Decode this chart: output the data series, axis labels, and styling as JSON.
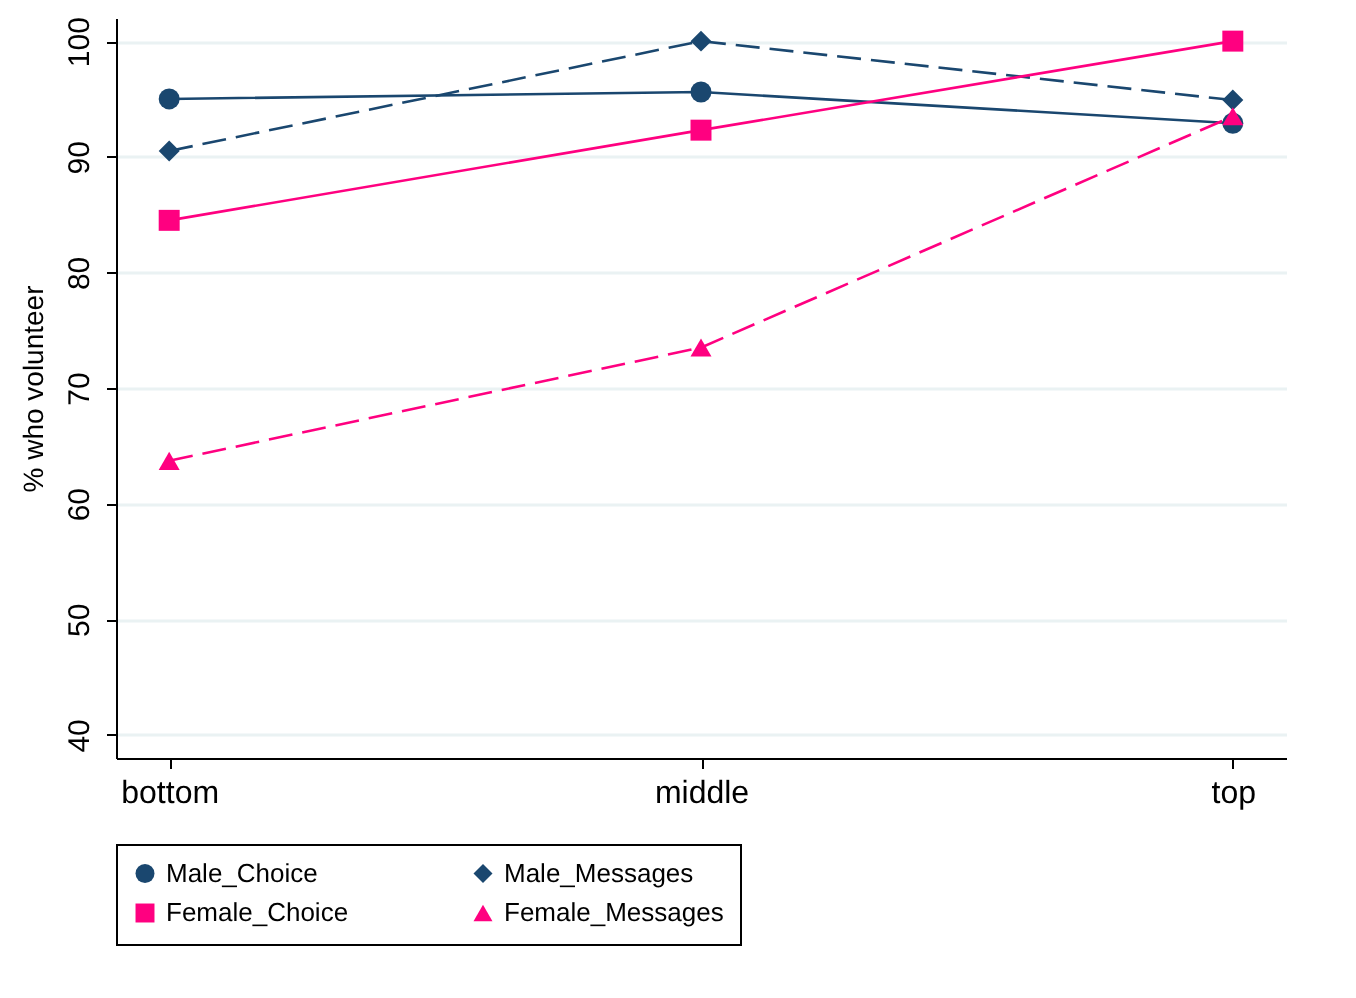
{
  "chart_data": {
    "type": "line",
    "ylabel": "% who volunteer",
    "categories": [
      "bottom",
      "middle",
      "top"
    ],
    "series": [
      {
        "name": "Male_Choice",
        "color": "#1a476f",
        "marker": "circle",
        "line_style": "solid",
        "values": [
          95,
          95.6,
          92.9
        ]
      },
      {
        "name": "Male_Messages",
        "color": "#1a476f",
        "marker": "diamond",
        "line_style": "dashed",
        "values": [
          90.5,
          100,
          94.9
        ]
      },
      {
        "name": "Female_Choice",
        "color": "#ff0080",
        "marker": "square",
        "line_style": "solid",
        "values": [
          84.5,
          92.3,
          100
        ]
      },
      {
        "name": "Female_Messages",
        "color": "#ff0080",
        "marker": "triangle",
        "line_style": "dashed",
        "values": [
          63.7,
          73.5,
          93.5
        ]
      }
    ],
    "ylim": [
      38,
      102
    ],
    "yticks": [
      40,
      50,
      60,
      70,
      80,
      90,
      100
    ],
    "grid": "y",
    "legend": "bottom"
  }
}
